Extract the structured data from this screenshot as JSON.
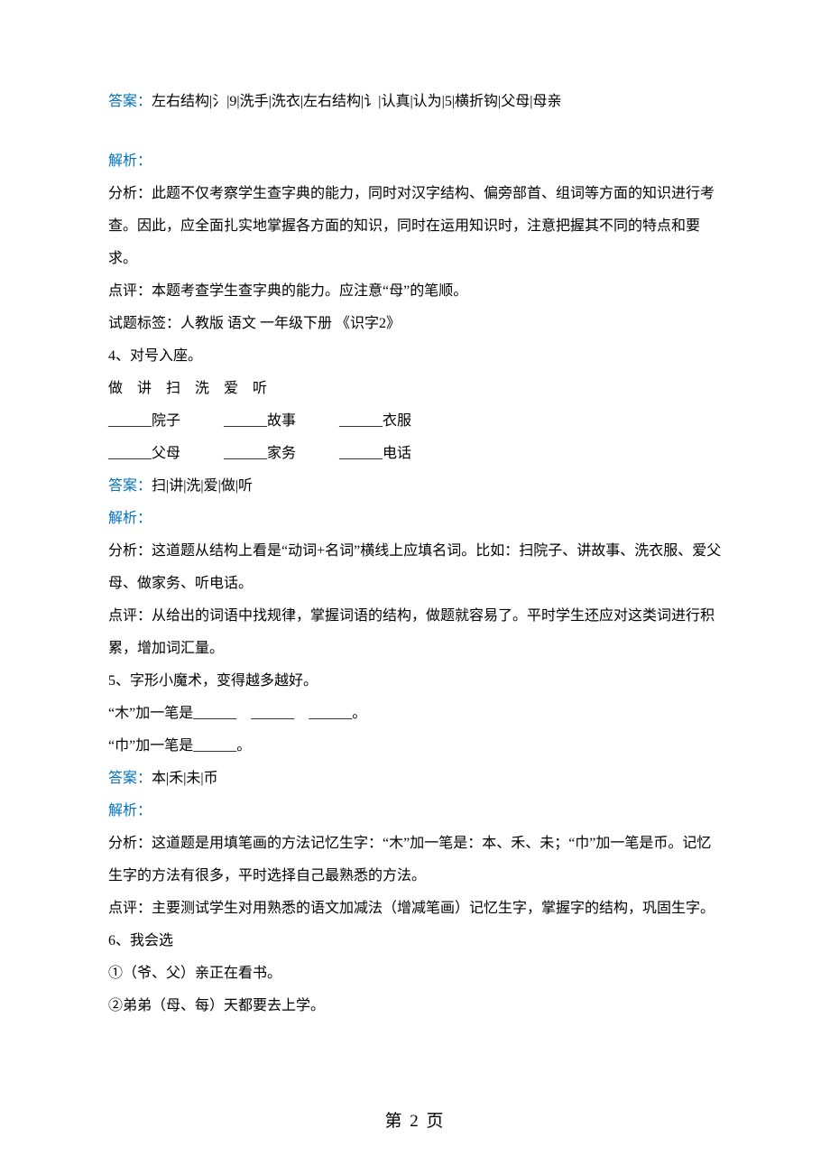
{
  "colors": {
    "text": "#000000",
    "accent": "#0070c0",
    "background": "#ffffff"
  },
  "typography": {
    "body_font": "SimSun",
    "body_size_pt": 12,
    "footer_size_pt": 14,
    "line_height": 2.25
  },
  "lines": {
    "l1_label": "答案：",
    "l1_body": "左右结构|氵|9|洗手|洗衣|左右结构|讠|认真|认为|5|横折钩|父母|母亲",
    "l2_label": "解析：",
    "l3": "分析：此题不仅考察学生查字典的能力，同时对汉字结构、偏旁部首、组词等方面的知识进行考查。因此，应全面扎实地掌握各方面的知识，同时在运用知识时，注意把握其不同的特点和要求。",
    "l4": "点评：本题考查学生查字典的能力。应注意“母”的笔顺。",
    "l5": "试题标签：人教版 语文 一年级下册 《识字2》",
    "l6": "4、对号入座。",
    "l7": "做　讲　扫　洗　爱　听",
    "l8": "______院子　　　______故事　　　______衣服",
    "l9": "______父母　　　______家务　　　______电话",
    "l10_label": "答案：",
    "l10_body": "扫|讲|洗|爱|做|听",
    "l11_label": "解析：",
    "l12": "分析：这道题从结构上看是“动词+名词”横线上应填名词。比如：扫院子、讲故事、洗衣服、爱父母、做家务、听电话。",
    "l13": "点评：从给出的词语中找规律，掌握词语的结构，做题就容易了。平时学生还应对这类词进行积累，增加词汇量。",
    "l14": "5、字形小魔术，变得越多越好。",
    "l15": "“木”加一笔是______　______　______。",
    "l16": "“巾”加一笔是______。",
    "l17_label": "答案：",
    "l17_body": "本|禾|未|币",
    "l18_label": "解析：",
    "l19": "分析：这道题是用填笔画的方法记忆生字：“木”加一笔是：本、禾、未；“巾”加一笔是币。记忆生字的方法有很多，平时选择自己最熟悉的方法。",
    "l20": "点评：主要测试学生对用熟悉的语文加减法（增减笔画）记忆生字，掌握字的结构，巩固生字。",
    "l21": "6、我会选",
    "l22": "①（爷、父）亲正在看书。",
    "l23": "②弟弟（母、每）天都要去上学。"
  },
  "footer": "第 2 页"
}
